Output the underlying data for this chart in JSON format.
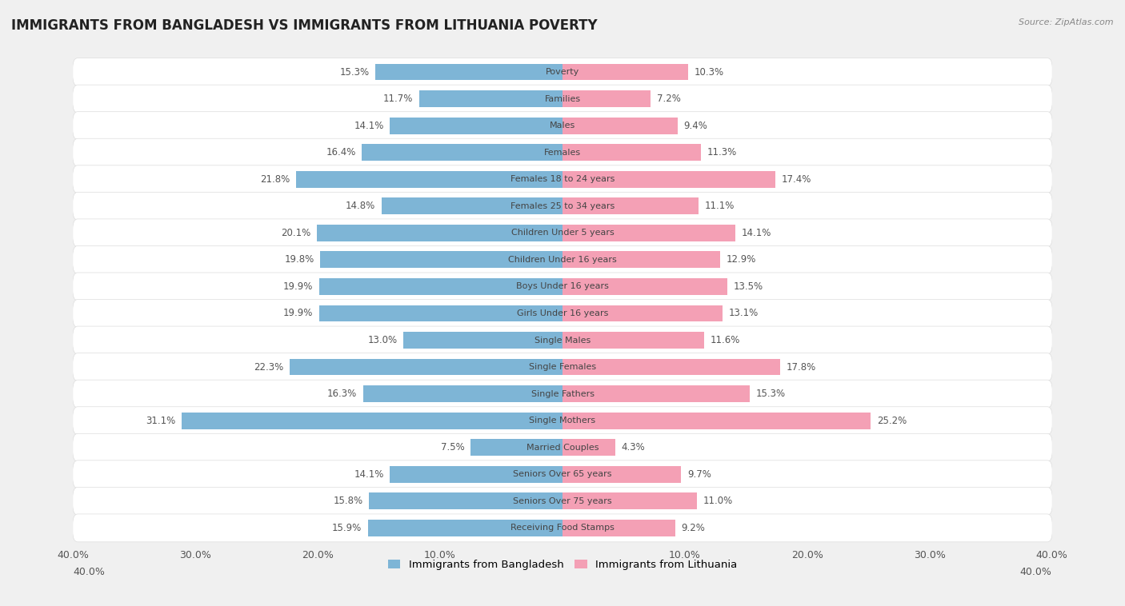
{
  "title": "IMMIGRANTS FROM BANGLADESH VS IMMIGRANTS FROM LITHUANIA POVERTY",
  "source": "Source: ZipAtlas.com",
  "categories": [
    "Poverty",
    "Families",
    "Males",
    "Females",
    "Females 18 to 24 years",
    "Females 25 to 34 years",
    "Children Under 5 years",
    "Children Under 16 years",
    "Boys Under 16 years",
    "Girls Under 16 years",
    "Single Males",
    "Single Females",
    "Single Fathers",
    "Single Mothers",
    "Married Couples",
    "Seniors Over 65 years",
    "Seniors Over 75 years",
    "Receiving Food Stamps"
  ],
  "bangladesh_values": [
    15.3,
    11.7,
    14.1,
    16.4,
    21.8,
    14.8,
    20.1,
    19.8,
    19.9,
    19.9,
    13.0,
    22.3,
    16.3,
    31.1,
    7.5,
    14.1,
    15.8,
    15.9
  ],
  "lithuania_values": [
    10.3,
    7.2,
    9.4,
    11.3,
    17.4,
    11.1,
    14.1,
    12.9,
    13.5,
    13.1,
    11.6,
    17.8,
    15.3,
    25.2,
    4.3,
    9.7,
    11.0,
    9.2
  ],
  "bangladesh_color": "#7eb5d6",
  "lithuania_color": "#f4a0b5",
  "background_color": "#f0f0f0",
  "row_bg_color": "#e8e8e8",
  "xlim": 40.0,
  "label_fontsize": 8.5,
  "title_fontsize": 12,
  "legend_fontsize": 9.5,
  "bar_height": 0.62,
  "category_fontsize": 8.0
}
